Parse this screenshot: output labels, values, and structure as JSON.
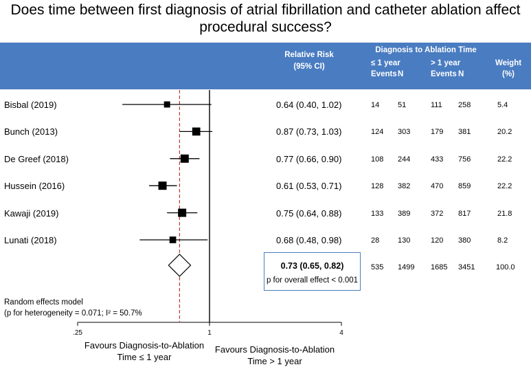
{
  "title_line1": "Does time between first diagnosis of atrial fibrillation and catheter ablation affect",
  "title_line2": "procedural success?",
  "header": {
    "rr_line1": "Relative Risk",
    "rr_line2": "(95% CI)",
    "diag_time": "Diagnosis to Ablation Time",
    "le1": "≤ 1 year",
    "gt1": "> 1 year",
    "events": "Events",
    "n": "N",
    "weight_line1": "Weight",
    "weight_line2": "(%)"
  },
  "rows": [
    {
      "study": "Bisbal (2019)",
      "rr_text": "0.64 (0.40, 1.02)",
      "le_events": "14",
      "le_n": "51",
      "gt_events": "111",
      "gt_n": "258",
      "weight": "5.4"
    },
    {
      "study": "Bunch (2013)",
      "rr_text": "0.87 (0.73, 1.03)",
      "le_events": "124",
      "le_n": "303",
      "gt_events": "179",
      "gt_n": "381",
      "weight": "20.2"
    },
    {
      "study": "De Greef (2018)",
      "rr_text": "0.77 (0.66, 0.90)",
      "le_events": "108",
      "le_n": "244",
      "gt_events": "433",
      "gt_n": "756",
      "weight": "22.2"
    },
    {
      "study": "Hussein (2016)",
      "rr_text": "0.61 (0.53, 0.71)",
      "le_events": "128",
      "le_n": "382",
      "gt_events": "470",
      "gt_n": "859",
      "weight": "22.2"
    },
    {
      "study": "Kawaji (2019)",
      "rr_text": "0.75 (0.64, 0.88)",
      "le_events": "133",
      "le_n": "389",
      "gt_events": "372",
      "gt_n": "817",
      "weight": "21.8"
    },
    {
      "study": "Lunati (2018)",
      "rr_text": "0.68 (0.48, 0.98)",
      "le_events": "28",
      "le_n": "130",
      "gt_events": "120",
      "gt_n": "380",
      "weight": "8.2"
    }
  ],
  "pooled": {
    "rr_text": "0.73 (0.65, 0.82)",
    "p_text": "p for overall effect < 0.001",
    "le_events": "535",
    "le_n": "1499",
    "gt_events": "1685",
    "gt_n": "3451",
    "weight": "100.0"
  },
  "model_line1": "Random effects model",
  "model_line2": "(p for heterogeneity = 0.071; I² = 50.7%",
  "axis": {
    "favours_left_line1": "Favours Diagnosis-to-Ablation",
    "favours_left_line2": "Time ≤ 1 year",
    "favours_right_line1": "Favours Diagnosis-to-Ablation",
    "favours_right_line2": "Time > 1 year"
  },
  "colors": {
    "header_band": "#4a7cc1",
    "pooled_box_border": "#4a7cc1",
    "reference_line": "#c0392b"
  },
  "chart_data": {
    "type": "forest",
    "title": "Does time between first diagnosis of atrial fibrillation and catheter ablation affect procedural success?",
    "xscale": "log2",
    "xlim": [
      0.25,
      4
    ],
    "xticks": [
      {
        "value": 0.25,
        "label": ".25"
      },
      {
        "value": 1,
        "label": "1"
      },
      {
        "value": 4,
        "label": "4"
      }
    ],
    "null_value": 1,
    "pooled_reference_value": 0.73,
    "studies": [
      {
        "name": "Bisbal (2019)",
        "rr": 0.64,
        "lower": 0.4,
        "upper": 1.02,
        "weight": 5.4
      },
      {
        "name": "Bunch (2013)",
        "rr": 0.87,
        "lower": 0.73,
        "upper": 1.03,
        "weight": 20.2
      },
      {
        "name": "De Greef (2018)",
        "rr": 0.77,
        "lower": 0.66,
        "upper": 0.9,
        "weight": 22.2
      },
      {
        "name": "Hussein (2016)",
        "rr": 0.61,
        "lower": 0.53,
        "upper": 0.71,
        "weight": 22.2
      },
      {
        "name": "Kawaji (2019)",
        "rr": 0.75,
        "lower": 0.64,
        "upper": 0.88,
        "weight": 21.8
      },
      {
        "name": "Lunati (2018)",
        "rr": 0.68,
        "lower": 0.48,
        "upper": 0.98,
        "weight": 8.2
      }
    ],
    "pooled": {
      "rr": 0.73,
      "lower": 0.65,
      "upper": 0.82
    }
  }
}
